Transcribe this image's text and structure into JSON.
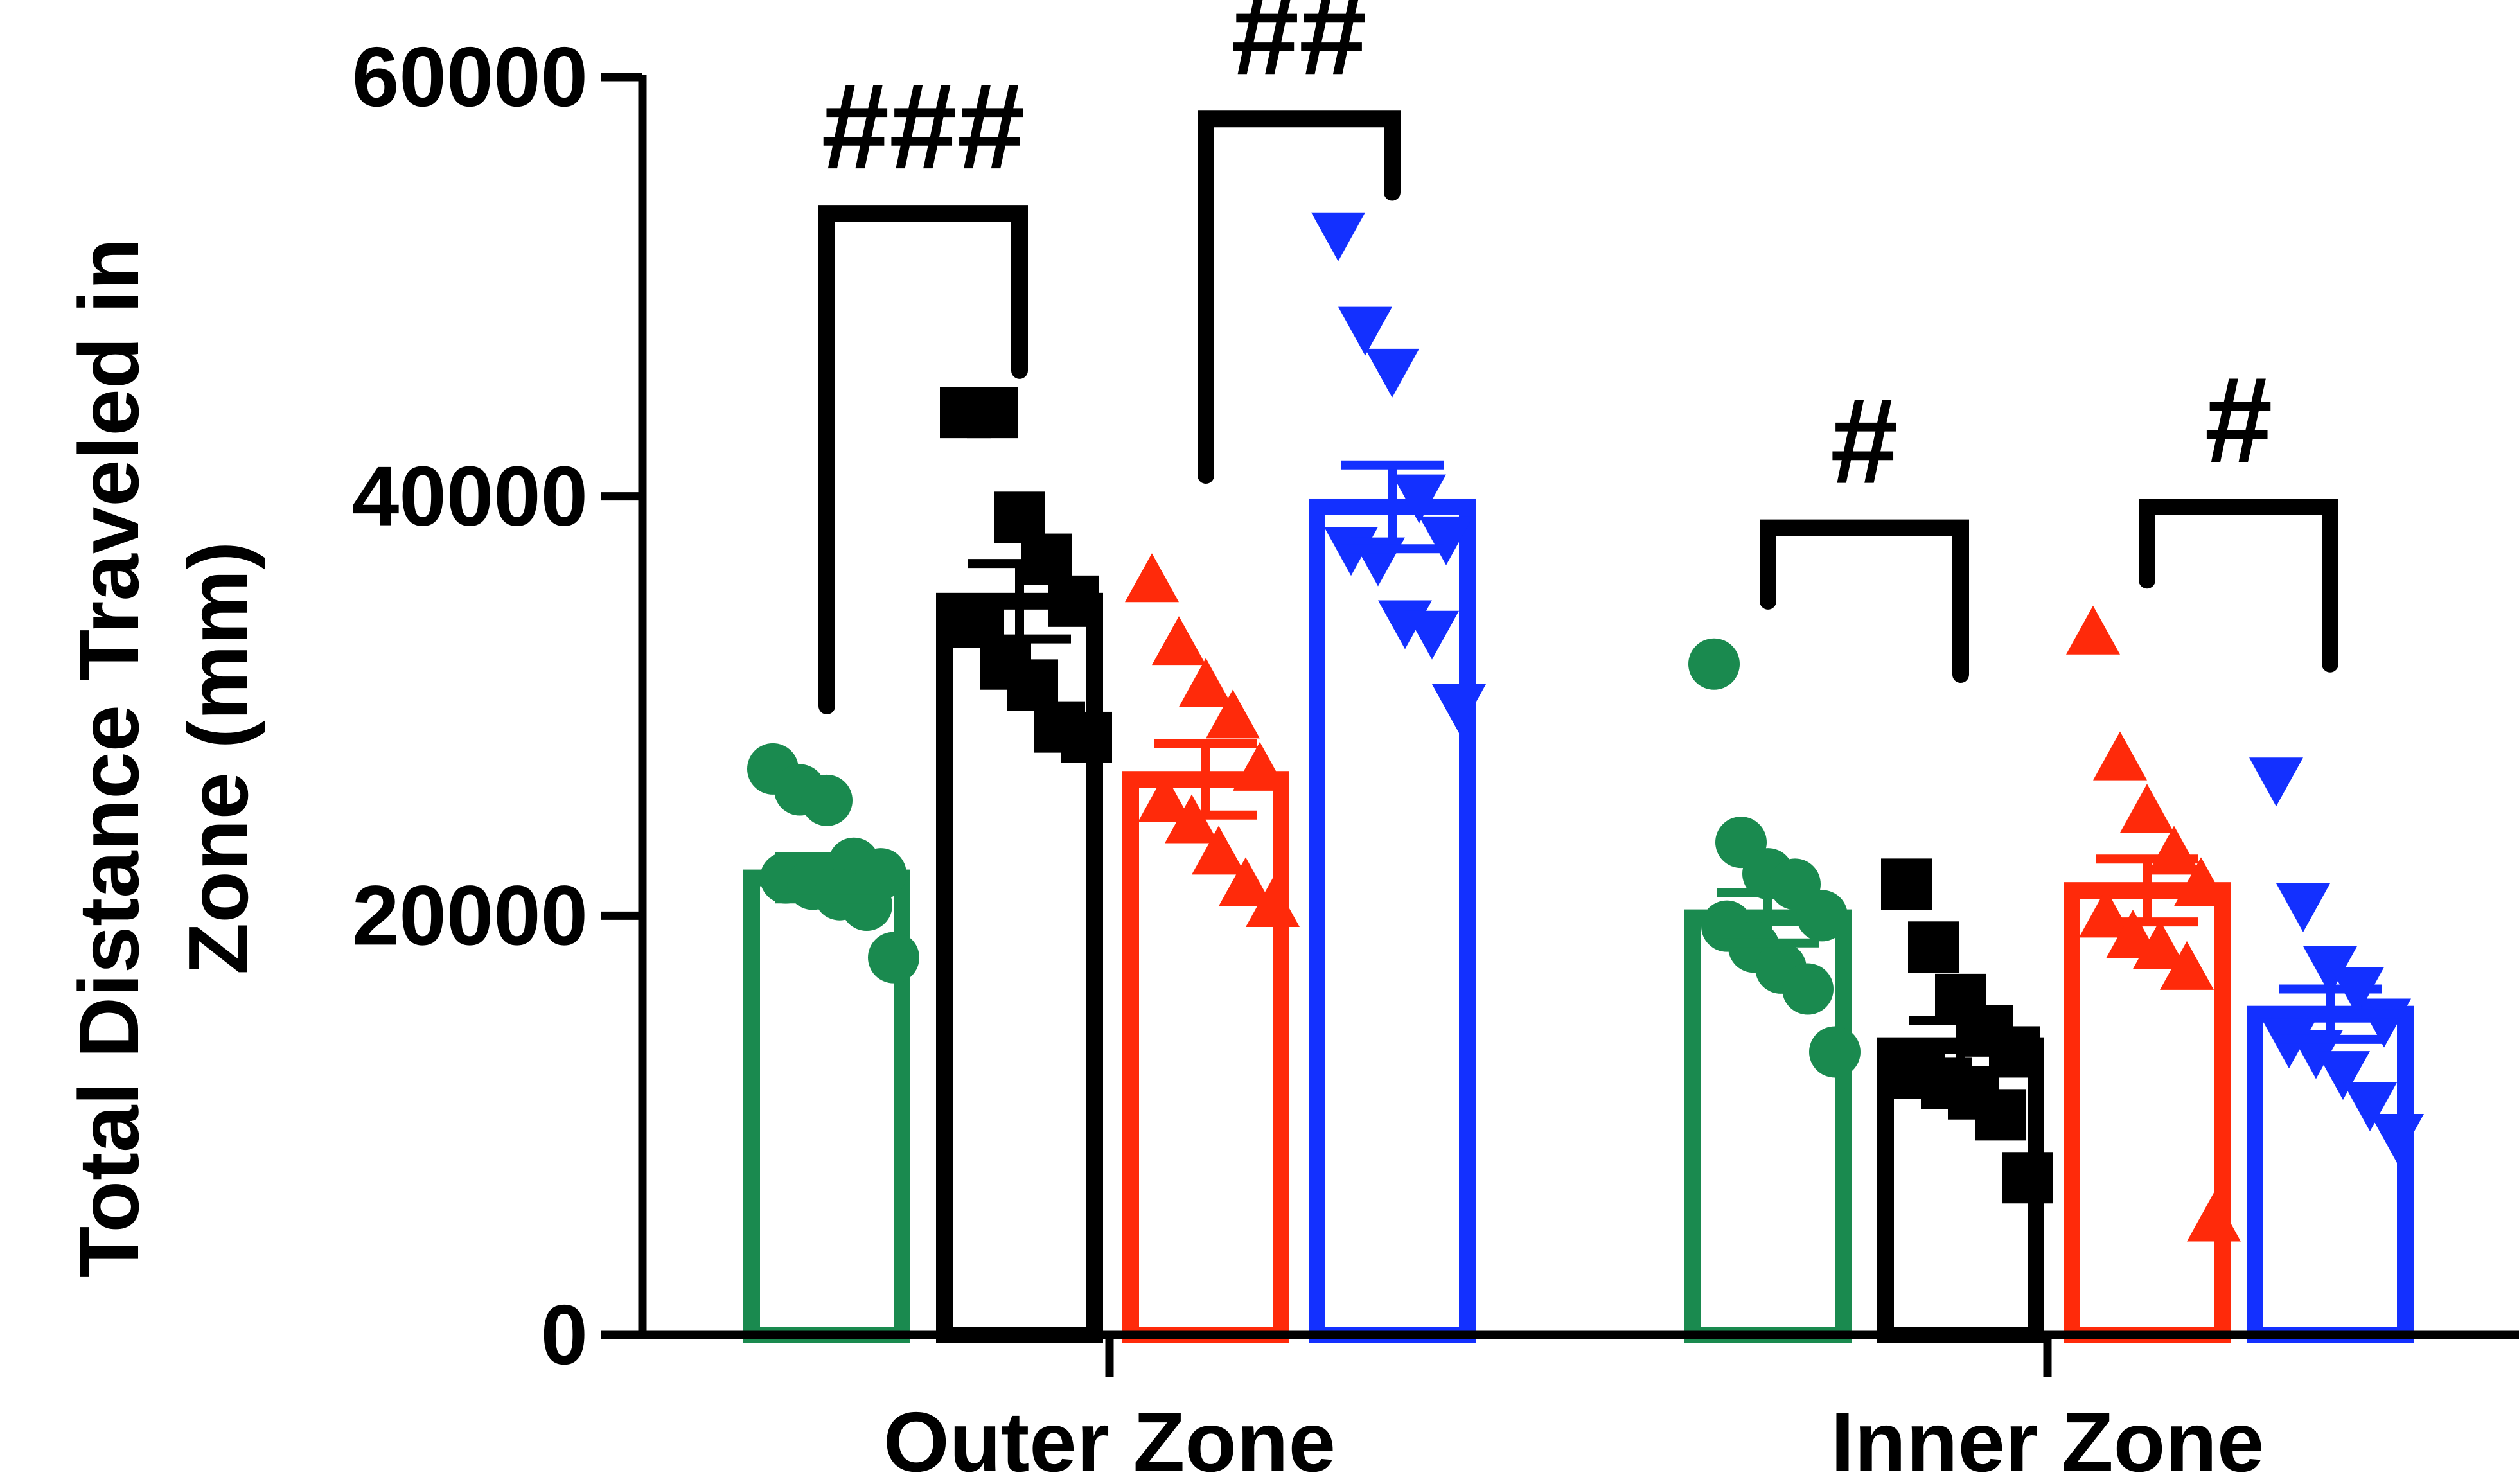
{
  "chart_data": {
    "type": "bar",
    "ylabel": "Total Distance Traveled in Zone (mm)",
    "ylabel_lines": [
      "Total Distance Traveled in",
      "Zone (mm)"
    ],
    "ylim": [
      0,
      60000
    ],
    "yticks": [
      "0",
      "20000",
      "40000",
      "60000"
    ],
    "categories": [
      "Outer Zone",
      "Inner Zone"
    ],
    "series": [
      {
        "color": "#1a8a4f",
        "marker": "circle",
        "values": [
          21800,
          19900
        ],
        "sem": [
          1000,
          1200
        ],
        "points": [
          [
            27000,
            26000,
            25500,
            22500,
            22000,
            21800,
            21500,
            21000,
            20500,
            18000
          ],
          [
            32000,
            23500,
            22000,
            21500,
            20000,
            19500,
            18500,
            17500,
            16500,
            13500
          ]
        ]
      },
      {
        "color": "#000000",
        "marker": "square",
        "values": [
          35000,
          13800
        ],
        "sem": [
          1800,
          1200
        ],
        "points": [
          [
            44000,
            44000,
            39000,
            37000,
            35000,
            34000,
            32000,
            31000,
            29000,
            28500
          ],
          [
            21500,
            18500,
            16000,
            14500,
            13500,
            12500,
            12000,
            11500,
            10500,
            7500
          ]
        ]
      },
      {
        "color": "#ff2a0a",
        "marker": "triangle-up",
        "values": [
          26500,
          21200
        ],
        "sem": [
          1700,
          1500
        ],
        "points": [
          [
            36000,
            33000,
            31000,
            29500,
            27000,
            25500,
            24500,
            23000,
            21500,
            20500
          ],
          [
            33500,
            27500,
            25000,
            23000,
            21500,
            20000,
            19000,
            18500,
            17500,
            5500
          ]
        ]
      },
      {
        "color": "#1330ff",
        "marker": "triangle-down",
        "values": [
          39500,
          15300
        ],
        "sem": [
          2000,
          1200
        ],
        "points": [
          [
            52500,
            48000,
            46000,
            40000,
            38000,
            37500,
            37000,
            34000,
            33500,
            30000
          ],
          [
            26500,
            20500,
            17500,
            16500,
            15000,
            14000,
            13500,
            12500,
            11000,
            9500
          ]
        ]
      }
    ],
    "annotations": [
      {
        "text": "###",
        "category": 0,
        "from_series": 0,
        "to_series": 1,
        "top": 53500,
        "left_end": 30000,
        "right_end": 46000
      },
      {
        "text": "##",
        "category": 0,
        "from_series": 2,
        "to_series": 3,
        "top": 58000,
        "left_end": 41000,
        "right_end": 54500
      },
      {
        "text": "#",
        "category": 1,
        "from_series": 0,
        "to_series": 1,
        "top": 38500,
        "left_end": 35000,
        "right_end": 31500
      },
      {
        "text": "#",
        "category": 1,
        "from_series": 2,
        "to_series": 3,
        "top": 39500,
        "left_end": 36000,
        "right_end": 32000
      }
    ]
  }
}
